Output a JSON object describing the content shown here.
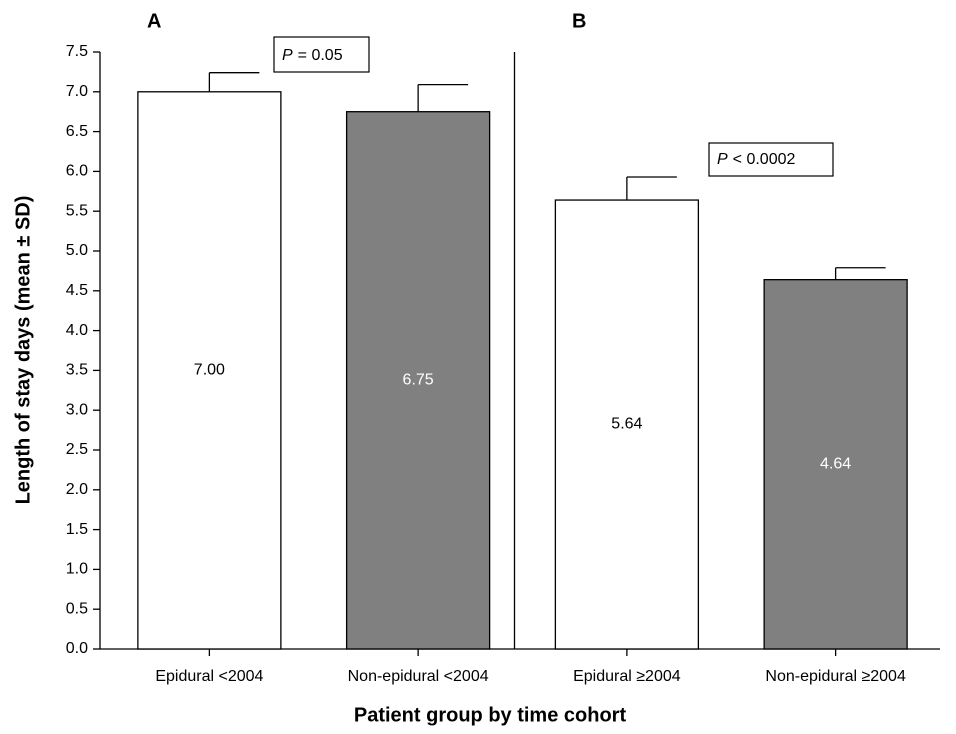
{
  "chart_data": {
    "type": "bar",
    "y_label": "Length of stay days (mean ± SD)",
    "x_label": "Patient group by time cohort",
    "panel_labels": [
      "A",
      "B"
    ],
    "categories": [
      "Epidural <2004",
      "Non-epidural <2004",
      "Epidural ≥2004",
      "Non-epidural ≥2004"
    ],
    "values": [
      7.0,
      6.75,
      5.64,
      4.64
    ],
    "value_labels": [
      "7.00",
      "6.75",
      "5.64",
      "4.64"
    ],
    "errors": [
      0.24,
      0.34,
      0.29,
      0.15
    ],
    "colors": [
      "#ffffff",
      "#808080",
      "#ffffff",
      "#808080"
    ],
    "value_label_colors": [
      "#000000",
      "#ffffff",
      "#000000",
      "#ffffff"
    ],
    "annotations": [
      {
        "symbol": "P",
        "text": "= 0.05"
      },
      {
        "symbol": "P",
        "text": "< 0.0002"
      }
    ],
    "ylim": [
      0,
      7.5
    ],
    "yticks": [
      {
        "value": 0,
        "label": "0.0"
      },
      0.5,
      {
        "value": 1,
        "label": "1.0"
      },
      1.5,
      {
        "value": 2,
        "label": "2.0"
      },
      2.5,
      {
        "value": 3,
        "label": "3.0"
      },
      3.5,
      {
        "value": 4,
        "label": "4.0"
      },
      4.5,
      {
        "value": 5,
        "label": "5.0"
      },
      5.5,
      {
        "value": 6,
        "label": "6.0"
      },
      6.5,
      {
        "value": 7,
        "label": "7.0"
      },
      7.5
    ],
    "grid": false
  }
}
